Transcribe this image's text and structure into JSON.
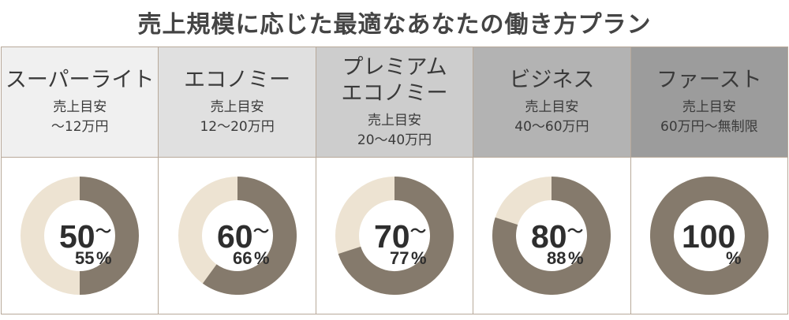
{
  "title": "売上規模に応じた最適なあなたの働き方プラン",
  "colors": {
    "ring": "#857a6c",
    "ring_bg": "#ede3d2"
  },
  "plans": [
    {
      "name": "スーパーライト",
      "sub1": "売上目安",
      "sub2": "〜12万円",
      "head_bg": "#f0f0f0",
      "pct_from": "50",
      "pct_tilde": "〜",
      "pct_to": "55",
      "pct_sign": "%",
      "fill": 0.5
    },
    {
      "name": "エコノミー",
      "sub1": "売上目安",
      "sub2": "12〜20万円",
      "head_bg": "#e0e0e0",
      "pct_from": "60",
      "pct_tilde": "〜",
      "pct_to": "66",
      "pct_sign": "%",
      "fill": 0.6
    },
    {
      "name": "プレミアム\nエコノミー",
      "sub1": "売上目安",
      "sub2": "20〜40万円",
      "head_bg": "#cdcdcd",
      "pct_from": "70",
      "pct_tilde": "〜",
      "pct_to": "77",
      "pct_sign": "%",
      "fill": 0.7
    },
    {
      "name": "ビジネス",
      "sub1": "売上目安",
      "sub2": "40〜60万円",
      "head_bg": "#b3b3b3",
      "pct_from": "80",
      "pct_tilde": "〜",
      "pct_to": "88",
      "pct_sign": "%",
      "fill": 0.8
    },
    {
      "name": "ファースト",
      "sub1": "売上目安",
      "sub2": "60万円〜無制限",
      "head_bg": "#9c9c9c",
      "pct_from": "100",
      "pct_tilde": "",
      "pct_to": "",
      "pct_sign": "%",
      "fill": 1.0
    }
  ]
}
